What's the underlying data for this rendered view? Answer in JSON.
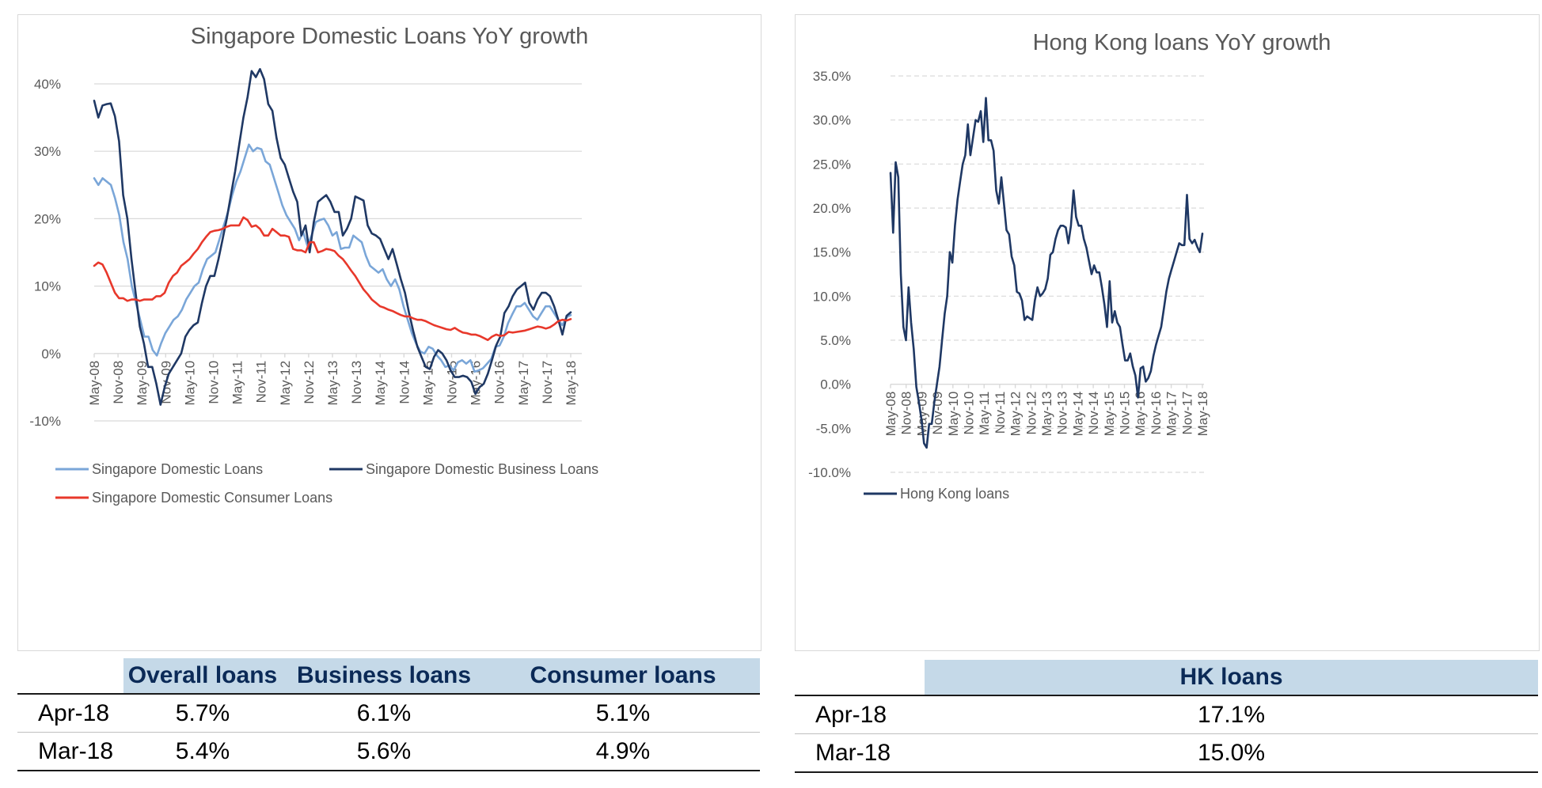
{
  "sg_chart": {
    "chart_data": {
      "type": "line",
      "title": "Singapore Domestic Loans YoY growth",
      "x_tick_labels": [
        "May-08",
        "Nov-08",
        "May-09",
        "Nov-09",
        "May-10",
        "Nov-10",
        "May-11",
        "Nov-11",
        "May-12",
        "Nov-12",
        "May-13",
        "Nov-13",
        "May-14",
        "Nov-14",
        "May-15",
        "Nov-15",
        "May-16",
        "Nov-16",
        "May-17",
        "Nov-17",
        "May-18"
      ],
      "y_tick_labels": [
        "40%",
        "30%",
        "20%",
        "10%",
        "0%",
        "-10%"
      ],
      "ylim": [
        -10,
        40
      ],
      "grid": true,
      "legend_position": "bottom",
      "series": [
        {
          "name": "Singapore Domestic Loans",
          "color": "#7aa6d8",
          "key": "overall",
          "values": [
            26,
            25,
            26,
            25.5,
            25,
            23,
            20.5,
            16.5,
            14,
            10,
            7.5,
            5,
            2.5,
            2.5,
            0.5,
            -0.3,
            1.5,
            3,
            4,
            5,
            5.5,
            6.5,
            8,
            9,
            10,
            10.5,
            12.5,
            14,
            14.5,
            15,
            17,
            19,
            21,
            23.5,
            25.5,
            27,
            29,
            31,
            30,
            30.5,
            30.3,
            28.5,
            28,
            26,
            24,
            22,
            20.5,
            19.5,
            18.5,
            16.8,
            18,
            16,
            17.5,
            19.5,
            19.8,
            20,
            19,
            17.5,
            18,
            15.5,
            15.7,
            15.7,
            17.5,
            17,
            16.5,
            14.5,
            13,
            12.5,
            12,
            12.5,
            11,
            10,
            11,
            9.5,
            7,
            5,
            3,
            1.5,
            0.3,
            0,
            1,
            0.7,
            -0.3,
            -1,
            -2,
            -1.8,
            -2.5,
            -1.3,
            -1,
            -1.5,
            -1,
            -2.7,
            -2.5,
            -2.2,
            -1.5,
            -0.8,
            1,
            1.2,
            2.5,
            4.5,
            5.8,
            7,
            7,
            7.5,
            6.5,
            5.5,
            5,
            6,
            7,
            7,
            6,
            5,
            4.2,
            5.4,
            5.7
          ]
        },
        {
          "name": "Singapore Domestic Business Loans",
          "color": "#1f3864",
          "key": "business",
          "values": [
            37.5,
            35,
            36.8,
            37,
            37.1,
            35.2,
            31.5,
            23.5,
            20,
            14,
            9,
            4,
            1.5,
            -2,
            -2,
            -4.5,
            -7.6,
            -5,
            -3,
            -2,
            -1,
            0,
            2.5,
            3.5,
            4.2,
            4.6,
            7.5,
            10,
            11.5,
            11.5,
            14,
            17,
            20,
            23.5,
            27,
            31,
            35,
            38,
            41.9,
            41,
            42.2,
            40.7,
            37,
            36,
            32,
            29,
            28,
            26,
            24,
            22.5,
            17.5,
            19,
            15,
            19.5,
            22.5,
            23,
            23.5,
            22.5,
            21,
            21,
            17.5,
            18.5,
            20,
            23.3,
            23,
            22.7,
            19,
            17.8,
            17.5,
            17,
            15.5,
            14,
            15.5,
            13.3,
            11,
            9,
            6,
            3.3,
            1,
            -0.5,
            -2,
            -2.3,
            -0.5,
            0.5,
            0,
            -1,
            -2.5,
            -3.5,
            -3.5,
            -3.3,
            -3.5,
            -4.2,
            -6,
            -5,
            -4.5,
            -3,
            -1,
            1.2,
            2.5,
            6,
            7,
            8.5,
            9.5,
            10,
            10.5,
            7.5,
            6.5,
            8,
            9,
            9,
            8.5,
            7,
            5,
            2.8,
            5.6,
            6.1
          ]
        },
        {
          "name": "Singapore Domestic Consumer Loans",
          "color": "#e8382b",
          "key": "consumer",
          "values": [
            13,
            13.5,
            13.2,
            12,
            10.5,
            9,
            8.2,
            8.2,
            7.8,
            8,
            8,
            7.8,
            8,
            8,
            8,
            8.5,
            8.5,
            9,
            10.5,
            11.5,
            12,
            13,
            13.5,
            14,
            14.8,
            15.5,
            16.5,
            17.3,
            18,
            18.2,
            18.3,
            18.5,
            18.8,
            19,
            19,
            19,
            20.2,
            19.8,
            18.8,
            19,
            18.5,
            17.5,
            17.5,
            18.5,
            18,
            17.5,
            17.5,
            17.3,
            15.5,
            15.3,
            15.3,
            15,
            16.5,
            16.5,
            15,
            15.2,
            15.5,
            15.4,
            15.2,
            14.5,
            14,
            13.2,
            12.3,
            11.5,
            10.5,
            9.5,
            8.8,
            8,
            7.5,
            7,
            6.8,
            6.5,
            6.3,
            6,
            5.7,
            5.5,
            5.5,
            5.2,
            5,
            5,
            4.8,
            4.5,
            4.2,
            4,
            3.8,
            3.6,
            3.5,
            3.8,
            3.4,
            3.1,
            3,
            2.8,
            2.8,
            2.6,
            2.3,
            2,
            2.5,
            2.8,
            2.6,
            2.7,
            3.2,
            3.1,
            3.2,
            3.3,
            3.4,
            3.6,
            3.8,
            4,
            3.9,
            3.7,
            3.9,
            4.3,
            4.8,
            5,
            4.9,
            5.1
          ]
        }
      ]
    }
  },
  "hk_chart": {
    "chart_data": {
      "type": "line",
      "title": "Hong Kong loans YoY growth",
      "x_tick_labels": [
        "May-08",
        "Nov-08",
        "May-09",
        "Nov-09",
        "May-10",
        "Nov-10",
        "May-11",
        "Nov-11",
        "May-12",
        "Nov-12",
        "May-13",
        "Nov-13",
        "May-14",
        "Nov-14",
        "May-15",
        "Nov-15",
        "May-16",
        "Nov-16",
        "May-17",
        "Nov-17",
        "May-18"
      ],
      "y_tick_labels": [
        "35.0%",
        "30.0%",
        "25.0%",
        "20.0%",
        "15.0%",
        "10.0%",
        "5.0%",
        "0.0%",
        "-5.0%",
        "-10.0%"
      ],
      "ylim": [
        -10,
        35
      ],
      "grid": true,
      "legend_position": "bottom",
      "series": [
        {
          "name": "Hong Kong loans",
          "color": "#1f3864",
          "values": [
            24,
            17.2,
            25.2,
            23.5,
            12.5,
            6.5,
            5,
            11,
            7,
            4,
            -0.3,
            -2,
            -4,
            -6.7,
            -7.2,
            -4.5,
            -4.5,
            -2,
            0,
            2,
            5,
            8,
            10,
            15,
            13.8,
            18,
            21,
            23,
            25,
            26,
            29.5,
            26,
            28,
            30,
            29.8,
            31,
            27.5,
            32.5,
            27.7,
            27.7,
            26.5,
            22,
            20.5,
            23.5,
            20.5,
            17.5,
            17,
            14.5,
            13.5,
            10.5,
            10.3,
            9.5,
            7.3,
            7.7,
            7.5,
            7.3,
            9.5,
            11,
            10,
            10.3,
            10.8,
            12,
            14.7,
            15,
            16.5,
            17.5,
            18,
            18,
            17.8,
            16,
            18,
            22,
            19,
            18,
            18,
            16.5,
            15.5,
            14,
            12.5,
            13.5,
            12.7,
            12.7,
            11,
            9,
            6.5,
            11.7,
            7,
            8.3,
            7,
            6.5,
            4.5,
            2.7,
            2.7,
            3.5,
            2,
            1,
            -1.5,
            1.8,
            2,
            0.3,
            0.7,
            1.5,
            3.2,
            4.5,
            5.5,
            6.5,
            8.5,
            10.5,
            12,
            13,
            14,
            15,
            16,
            15.8,
            15.8,
            21.5,
            16.5,
            16,
            16.4,
            15.6,
            15,
            17.1
          ]
        }
      ]
    }
  },
  "sg_table": {
    "headers": [
      "Overall loans",
      "Business loans",
      "Consumer loans"
    ],
    "rows": [
      {
        "label": "Apr-18",
        "values": [
          "5.7%",
          "6.1%",
          "5.1%"
        ]
      },
      {
        "label": "Mar-18",
        "values": [
          "5.4%",
          "5.6%",
          "4.9%"
        ]
      }
    ]
  },
  "hk_table": {
    "headers": [
      "HK loans"
    ],
    "rows": [
      {
        "label": "Apr-18",
        "values": [
          "17.1%"
        ]
      },
      {
        "label": "Mar-18",
        "values": [
          "15.0%"
        ]
      }
    ]
  }
}
